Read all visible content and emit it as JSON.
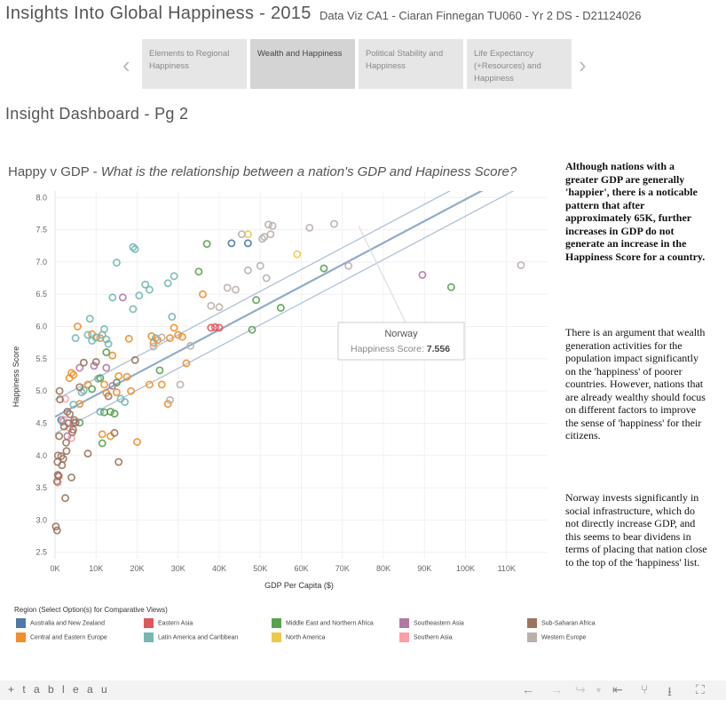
{
  "header": {
    "title": "Insights Into Global Happiness - 2015",
    "subtitle": "Data Viz CA1 - Ciaran Finnegan TU060 - Yr 2 DS - D21124026"
  },
  "tabs": [
    {
      "label": "Elements to Regional Happiness",
      "active": false
    },
    {
      "label": "Wealth and Happiness",
      "active": true
    },
    {
      "label": "Political Stability and Happiness",
      "active": false
    },
    {
      "label": "Life Expectancy (+Resources) and Happiness",
      "active": false
    }
  ],
  "nav": {
    "prev_icon": "chevron-left-icon",
    "next_icon": "chevron-right-icon"
  },
  "dashboard_title": "Insight Dashboard - Pg 2",
  "chart_title": {
    "main": "Happy v GDP - ",
    "question": "What is the relationship between a nation's GDP and Hapiness Score?"
  },
  "chart_data": {
    "type": "scatter",
    "xlabel": "GDP Per Capita ($)",
    "ylabel": "Happiness Score",
    "xlim": [
      0,
      120000
    ],
    "ylim": [
      2.4,
      8.1
    ],
    "x_ticks": [
      "0K",
      "10K",
      "20K",
      "30K",
      "40K",
      "50K",
      "60K",
      "70K",
      "80K",
      "90K",
      "100K",
      "110K"
    ],
    "y_ticks": [
      "2.5",
      "3.0",
      "3.5",
      "4.0",
      "4.5",
      "5.0",
      "5.5",
      "6.0",
      "6.5",
      "7.0",
      "7.5",
      "8.0"
    ],
    "grid": true,
    "trend_line": {
      "slope": 3.37e-05,
      "intercept": 4.6,
      "band": 0.26
    },
    "tooltip": {
      "country": "Norway",
      "label": "Happiness Score:",
      "value": "7.556",
      "x": 74000,
      "y": 7.556
    },
    "series": [
      {
        "name": "Australia and New Zealand",
        "color": "#4e79a7",
        "points": [
          [
            43000,
            7.29
          ],
          [
            47000,
            7.29
          ],
          [
            1500,
            4.55
          ]
        ]
      },
      {
        "name": "Central and Eastern Europe",
        "color": "#f28e2b",
        "points": [
          [
            3500,
            5.2
          ],
          [
            4000,
            5.28
          ],
          [
            4500,
            5.25
          ],
          [
            5500,
            6.0
          ],
          [
            9000,
            5.88
          ],
          [
            10000,
            5.83
          ],
          [
            11000,
            5.82
          ],
          [
            11500,
            4.33
          ],
          [
            12000,
            5.1
          ],
          [
            12500,
            4.97
          ],
          [
            13500,
            4.3
          ],
          [
            14000,
            5.55
          ],
          [
            15000,
            4.98
          ],
          [
            15500,
            5.23
          ],
          [
            17500,
            5.22
          ],
          [
            18000,
            5.81
          ],
          [
            18500,
            5.0
          ],
          [
            20000,
            4.21
          ],
          [
            23000,
            5.1
          ],
          [
            23500,
            5.85
          ],
          [
            24000,
            5.75
          ],
          [
            25000,
            5.79
          ],
          [
            26000,
            5.1
          ],
          [
            27500,
            4.8
          ],
          [
            28000,
            5.82
          ],
          [
            29000,
            5.98
          ],
          [
            30000,
            5.87
          ],
          [
            31000,
            5.84
          ],
          [
            32000,
            5.43
          ],
          [
            36000,
            6.5
          ],
          [
            6000,
            4.8
          ],
          [
            8000,
            5.1
          ]
        ]
      },
      {
        "name": "Eastern Asia",
        "color": "#e15759",
        "points": [
          [
            38000,
            5.98
          ],
          [
            39000,
            5.99
          ],
          [
            40000,
            5.98
          ]
        ]
      },
      {
        "name": "Latin America and Caribbean",
        "color": "#76b7b2",
        "points": [
          [
            1800,
            4.52
          ],
          [
            4500,
            4.79
          ],
          [
            7000,
            5.01
          ],
          [
            8000,
            5.87
          ],
          [
            8500,
            6.12
          ],
          [
            9000,
            5.78
          ],
          [
            10000,
            5.83
          ],
          [
            10500,
            5.19
          ],
          [
            11000,
            4.68
          ],
          [
            11500,
            5.87
          ],
          [
            12000,
            5.96
          ],
          [
            12500,
            5.8
          ],
          [
            13000,
            5.73
          ],
          [
            14000,
            6.45
          ],
          [
            15000,
            6.99
          ],
          [
            16000,
            4.88
          ],
          [
            17000,
            4.83
          ],
          [
            19000,
            7.23
          ],
          [
            19500,
            7.2
          ],
          [
            19000,
            6.27
          ],
          [
            20500,
            6.48
          ],
          [
            22000,
            6.65
          ],
          [
            23000,
            6.57
          ],
          [
            24500,
            5.82
          ],
          [
            27500,
            6.67
          ],
          [
            29000,
            6.78
          ],
          [
            28500,
            6.15
          ],
          [
            5000,
            5.82
          ],
          [
            6500,
            4.98
          ]
        ]
      },
      {
        "name": "Middle East and Northern Africa",
        "color": "#59a14f",
        "points": [
          [
            11000,
            5.2
          ],
          [
            11500,
            4.19
          ],
          [
            12000,
            4.67
          ],
          [
            13500,
            4.68
          ],
          [
            14500,
            4.65
          ],
          [
            12500,
            5.6
          ],
          [
            15000,
            5.13
          ],
          [
            25500,
            5.32
          ],
          [
            35000,
            6.85
          ],
          [
            37000,
            7.28
          ],
          [
            48000,
            5.95
          ],
          [
            49000,
            6.41
          ],
          [
            55000,
            6.29
          ],
          [
            65500,
            6.9
          ],
          [
            96500,
            6.61
          ],
          [
            9000,
            5.03
          ],
          [
            6000,
            4.51
          ]
        ]
      },
      {
        "name": "North America",
        "color": "#edc948",
        "points": [
          [
            47000,
            7.43
          ],
          [
            59000,
            7.12
          ]
        ]
      },
      {
        "name": "Southeastern Asia",
        "color": "#b07aa1",
        "points": [
          [
            3000,
            4.3
          ],
          [
            4500,
            4.51
          ],
          [
            6000,
            5.36
          ],
          [
            9500,
            5.39
          ],
          [
            12500,
            5.36
          ],
          [
            14000,
            5.08
          ],
          [
            16500,
            6.45
          ],
          [
            89500,
            6.8
          ]
        ]
      },
      {
        "name": "Southern Asia",
        "color": "#ff9da7",
        "points": [
          [
            700,
            3.58
          ],
          [
            1000,
            3.68
          ],
          [
            2000,
            4.56
          ],
          [
            2500,
            4.88
          ],
          [
            3500,
            4.43
          ],
          [
            4000,
            4.27
          ]
        ]
      },
      {
        "name": "Sub-Saharan Africa",
        "color": "#9c755f",
        "points": [
          [
            200,
            2.9
          ],
          [
            500,
            2.84
          ],
          [
            500,
            3.6
          ],
          [
            600,
            3.9
          ],
          [
            700,
            4.0
          ],
          [
            800,
            3.68
          ],
          [
            1000,
            4.3
          ],
          [
            1100,
            5.0
          ],
          [
            1200,
            4.87
          ],
          [
            1500,
            3.99
          ],
          [
            1700,
            3.85
          ],
          [
            2000,
            3.95
          ],
          [
            2200,
            4.45
          ],
          [
            2500,
            3.34
          ],
          [
            2700,
            4.2
          ],
          [
            3000,
            4.68
          ],
          [
            3300,
            4.5
          ],
          [
            3600,
            4.64
          ],
          [
            4000,
            3.66
          ],
          [
            4200,
            4.36
          ],
          [
            4400,
            4.4
          ],
          [
            4700,
            4.55
          ],
          [
            5000,
            4.51
          ],
          [
            6000,
            5.06
          ],
          [
            7000,
            5.44
          ],
          [
            8000,
            4.03
          ],
          [
            10000,
            5.45
          ],
          [
            13000,
            4.92
          ],
          [
            14500,
            4.35
          ],
          [
            15500,
            3.9
          ],
          [
            19500,
            5.48
          ],
          [
            700,
            3.7
          ],
          [
            2800,
            4.07
          ]
        ]
      },
      {
        "name": "Western Europe",
        "color": "#bab0ac",
        "points": [
          [
            24000,
            5.69
          ],
          [
            26000,
            5.83
          ],
          [
            28000,
            4.86
          ],
          [
            30500,
            5.1
          ],
          [
            33000,
            5.7
          ],
          [
            38000,
            6.32
          ],
          [
            40000,
            6.3
          ],
          [
            42000,
            6.6
          ],
          [
            44000,
            6.57
          ],
          [
            45500,
            7.43
          ],
          [
            47000,
            6.87
          ],
          [
            50000,
            6.94
          ],
          [
            50500,
            7.36
          ],
          [
            51500,
            6.75
          ],
          [
            52000,
            7.58
          ],
          [
            52500,
            7.43
          ],
          [
            51000,
            7.39
          ],
          [
            53000,
            7.56
          ],
          [
            62000,
            7.53
          ],
          [
            68000,
            7.59
          ],
          [
            71500,
            6.94
          ],
          [
            113500,
            6.95
          ]
        ]
      }
    ]
  },
  "commentary": [
    "Although nations with a greater GDP are generally 'happier', there is a noticable pattern that after approximately 65K, further increases in GDP do not generate an increase in the Happiness Score for a country.",
    "There is an argument that wealth generation activities for the population impact significantly on the 'happiness' of poorer countries. However, nations that are already wealthy should focus on different factors to improve the sense of 'happiness' for their citizens.",
    "Norway invests significantly in social infrastructure, which do not directly increase GDP, and this seems to bear dividens in terms of placing that nation close to the top of the 'happiness' list."
  ],
  "legend": {
    "title": "Region  (Select Option(s) for Comparative Views)",
    "items": [
      {
        "label": "Australia and New Zealand",
        "color": "#4e79a7"
      },
      {
        "label": "Central and Eastern Europe",
        "color": "#f28e2b"
      },
      {
        "label": "Eastern Asia",
        "color": "#e15759"
      },
      {
        "label": "Latin America and Caribbean",
        "color": "#76b7b2"
      },
      {
        "label": "Middle East and Northern Africa",
        "color": "#59a14f"
      },
      {
        "label": "North America",
        "color": "#edc948"
      },
      {
        "label": "Southeastern Asia",
        "color": "#b07aa1"
      },
      {
        "label": "Southern Asia",
        "color": "#ff9da7"
      },
      {
        "label": "Sub-Saharan Africa",
        "color": "#9c755f"
      },
      {
        "label": "Western Europe",
        "color": "#bab0ac"
      }
    ]
  },
  "footer": {
    "logo": "+ t a b l e a u",
    "icons": [
      "undo-icon",
      "redo-icon",
      "revert-icon",
      "revert-menu-icon",
      "first-page-icon",
      "share-icon",
      "download-icon",
      "fullscreen-icon"
    ]
  }
}
